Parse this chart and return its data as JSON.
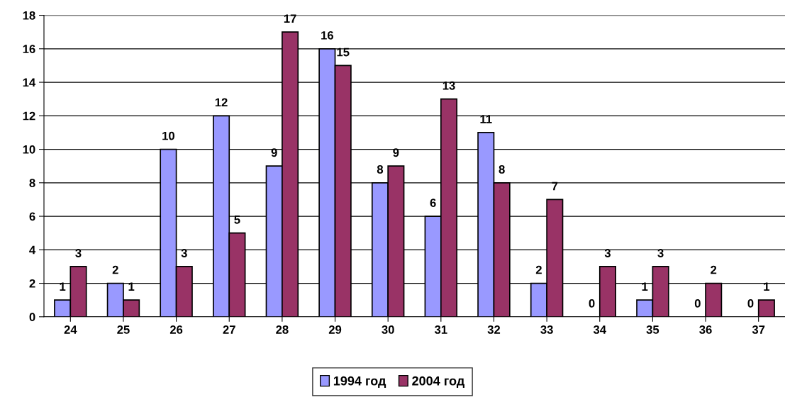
{
  "chart_data": {
    "type": "bar",
    "categories": [
      "24",
      "25",
      "26",
      "27",
      "28",
      "29",
      "30",
      "31",
      "32",
      "33",
      "34",
      "35",
      "36",
      "37"
    ],
    "series": [
      {
        "name": "1994 год",
        "color": "#9999ff",
        "values": [
          1,
          2,
          10,
          12,
          9,
          16,
          8,
          6,
          11,
          2,
          0,
          1,
          0,
          0
        ]
      },
      {
        "name": "2004 год",
        "color": "#993366",
        "values": [
          3,
          1,
          3,
          5,
          17,
          15,
          9,
          13,
          8,
          7,
          3,
          3,
          2,
          1
        ]
      }
    ],
    "ylim": [
      0,
      18
    ],
    "yticks": [
      0,
      2,
      4,
      6,
      8,
      10,
      12,
      14,
      16,
      18
    ],
    "grid": "y",
    "legend": "bottom",
    "data_labels": true
  }
}
